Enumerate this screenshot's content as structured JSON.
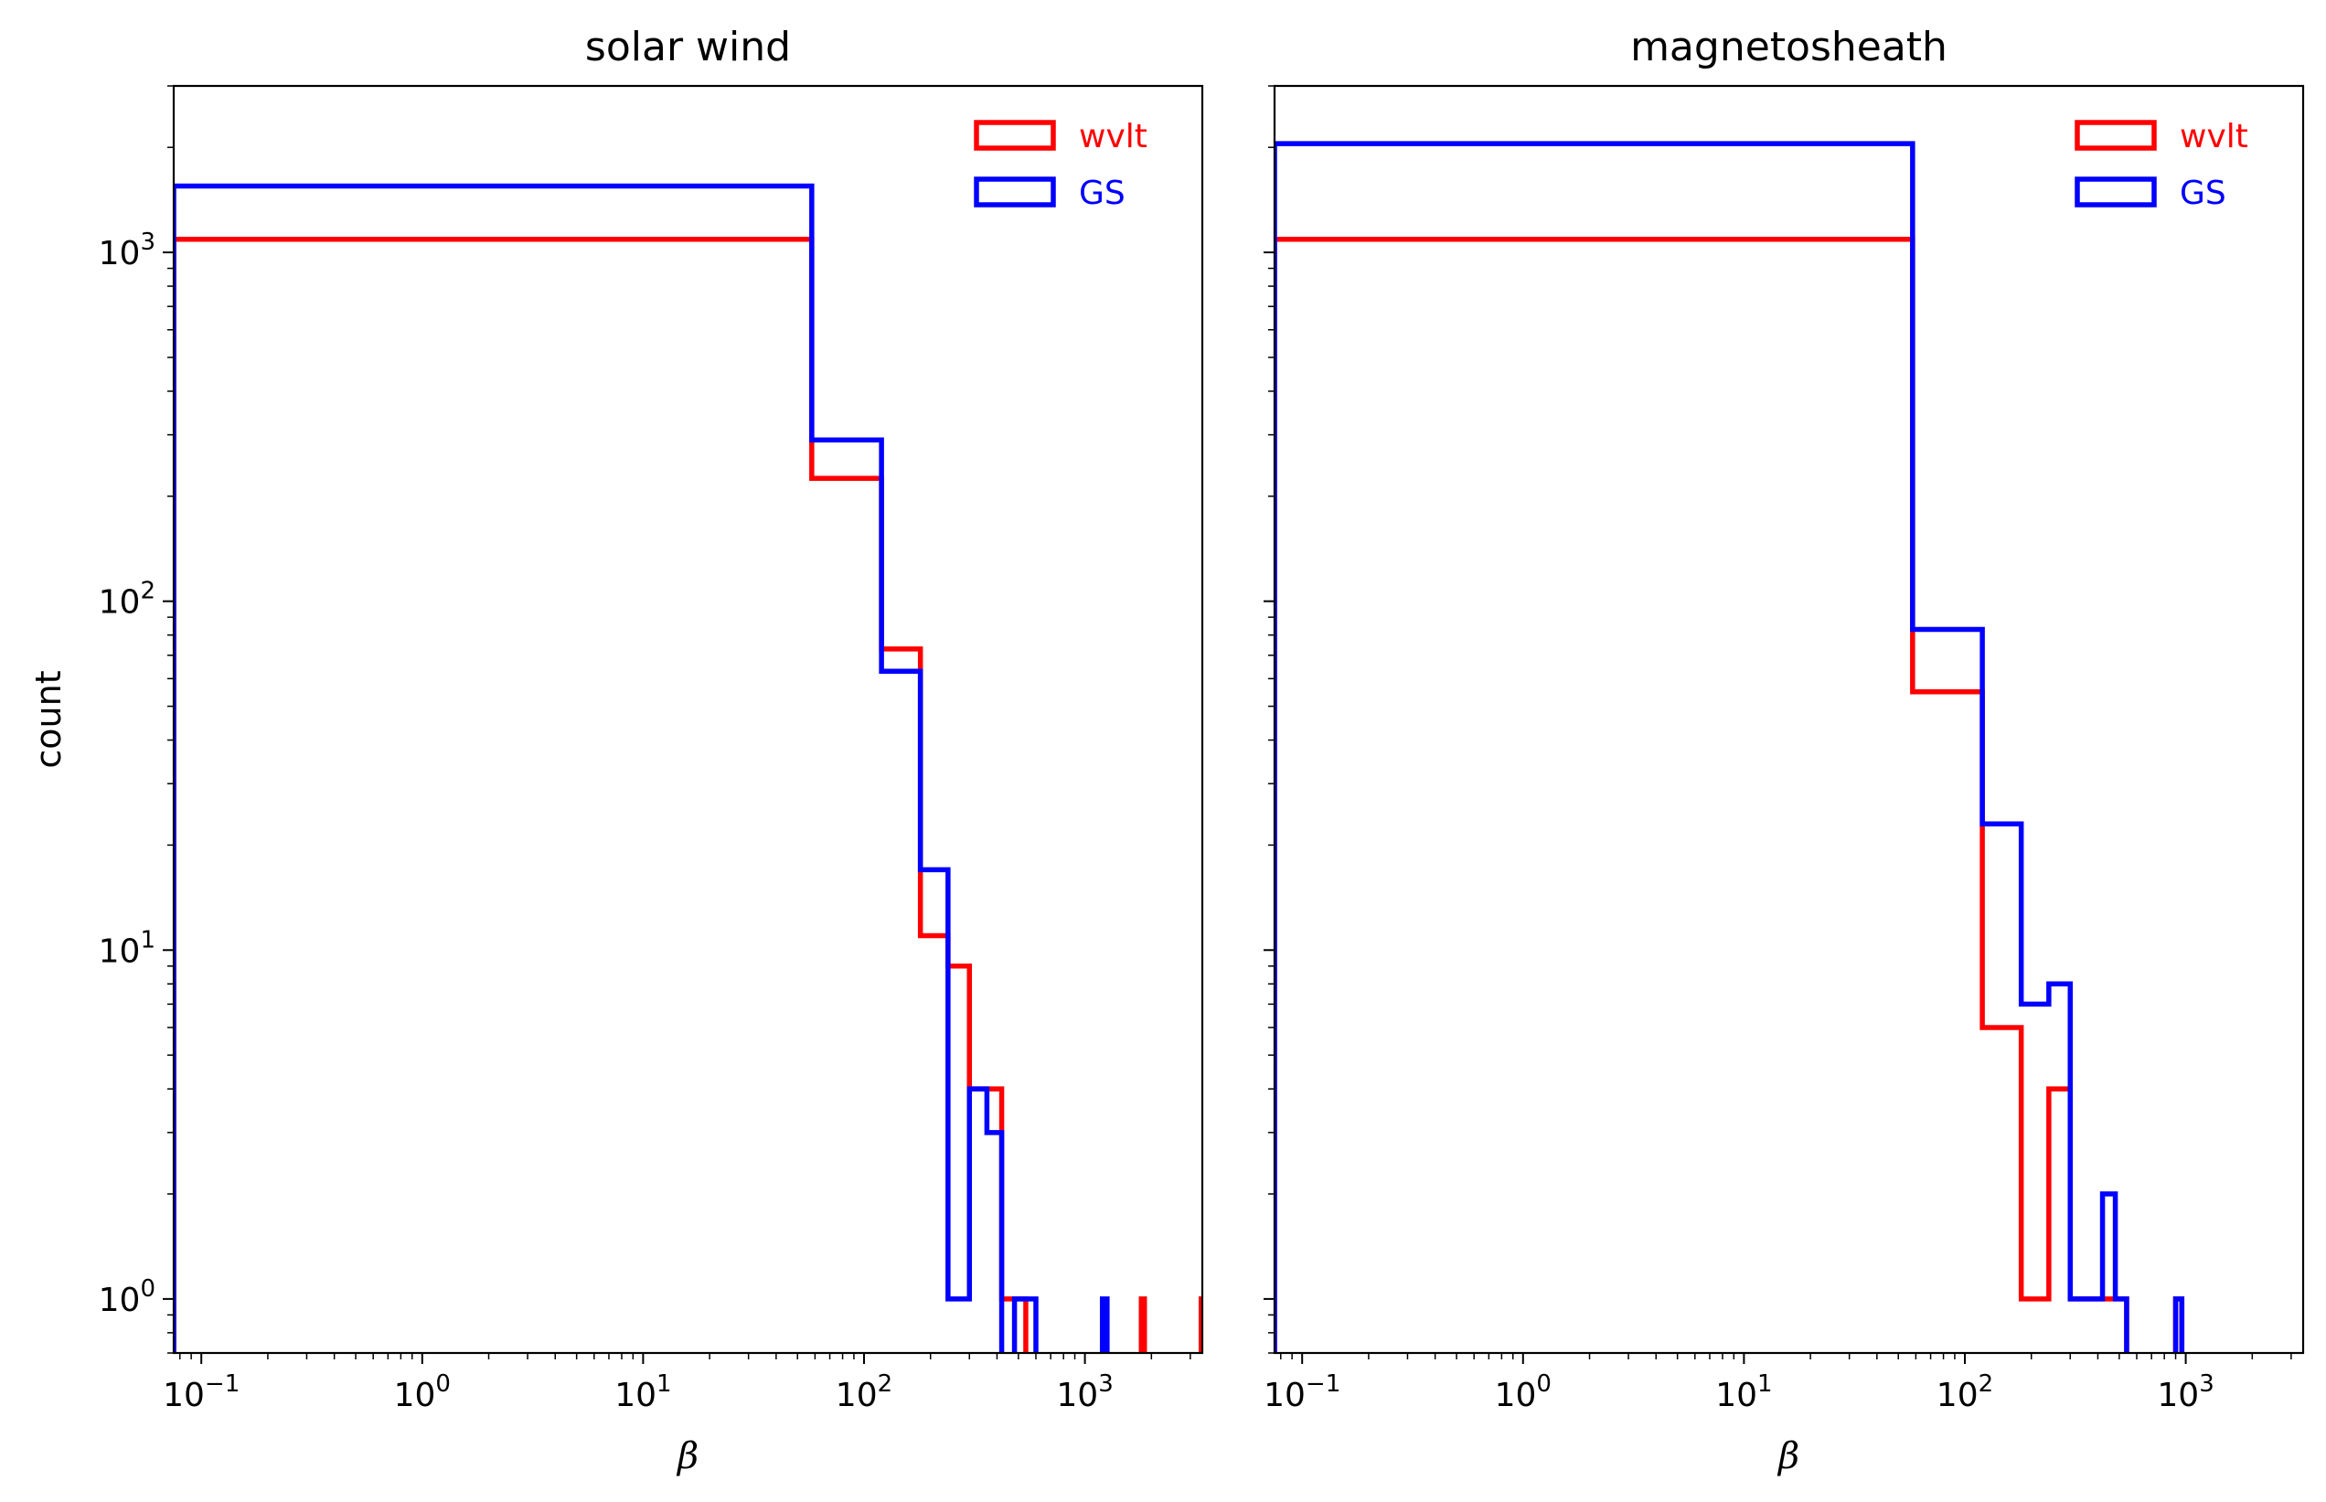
{
  "chart_data": [
    {
      "type": "histogram",
      "title": "solar wind",
      "xlabel": "β",
      "ylabel": "count",
      "xscale": "log",
      "yscale": "log",
      "xlim": [
        0.075,
        3400
      ],
      "ylim": [
        0.7,
        3000
      ],
      "x_ticks": [
        "10-1",
        "100",
        "101",
        "102",
        "103"
      ],
      "y_ticks": [
        "100",
        "101",
        "102",
        "103"
      ],
      "legend": "top-right",
      "bin_edges": [
        0.075,
        58,
        120,
        180,
        240,
        300,
        360,
        420,
        480,
        540,
        600,
        660,
        720,
        780,
        840,
        900,
        960,
        1020,
        1080,
        1140,
        1200,
        1260,
        1320,
        1380,
        1440,
        1500,
        1560,
        1620,
        1680,
        1740,
        1800,
        1860,
        1920,
        1980,
        2040,
        2100,
        2160,
        2220,
        2280,
        2340,
        2400,
        2460,
        2520,
        2580,
        2640,
        2700,
        2760,
        2820,
        2880,
        2940,
        3000,
        3060,
        3120,
        3180,
        3240,
        3300,
        3360,
        3400
      ],
      "series": [
        {
          "name": "wvlt",
          "color": "#ff0000",
          "counts": [
            1090,
            225,
            73,
            11,
            9,
            4,
            4,
            1,
            1,
            0,
            0,
            0,
            0,
            0,
            0,
            0,
            0,
            0,
            0,
            0,
            0,
            0,
            0,
            0,
            0,
            0,
            0,
            0,
            0,
            0,
            1,
            0,
            0,
            0,
            0,
            0,
            0,
            0,
            0,
            0,
            0,
            0,
            0,
            0,
            0,
            0,
            0,
            0,
            0,
            0,
            0,
            0,
            0,
            0,
            0,
            0,
            1
          ]
        },
        {
          "name": "GS",
          "color": "#0000ff",
          "counts": [
            1550,
            290,
            63,
            17,
            1,
            4,
            3,
            0,
            1,
            1,
            0,
            0,
            0,
            0,
            0,
            0,
            0,
            0,
            0,
            0,
            1,
            0,
            0,
            0,
            0,
            0,
            0,
            0,
            0,
            0,
            0,
            0,
            0,
            0,
            0,
            0,
            0,
            0,
            0,
            0,
            0,
            0,
            0,
            0,
            0,
            0,
            0,
            0,
            0,
            0,
            0,
            0,
            0,
            0,
            0,
            0,
            0
          ]
        }
      ]
    },
    {
      "type": "histogram",
      "title": "magnetosheath",
      "xlabel": "β",
      "ylabel": "",
      "xscale": "log",
      "yscale": "log",
      "xlim": [
        0.075,
        3400
      ],
      "ylim": [
        0.7,
        3000
      ],
      "x_ticks": [
        "10-1",
        "100",
        "101",
        "102",
        "103"
      ],
      "y_ticks": [],
      "legend": "top-right",
      "bin_edges": [
        0.075,
        58,
        120,
        180,
        240,
        300,
        360,
        420,
        480,
        540,
        600,
        660,
        720,
        780,
        840,
        900,
        960
      ],
      "series": [
        {
          "name": "wvlt",
          "color": "#ff0000",
          "counts": [
            1090,
            55,
            6,
            1,
            4,
            1,
            1,
            1,
            1,
            0,
            0,
            0,
            0,
            0,
            0,
            1
          ]
        },
        {
          "name": "GS",
          "color": "#0000ff",
          "counts": [
            2050,
            83,
            23,
            7,
            8,
            1,
            1,
            2,
            1,
            0,
            0,
            0,
            0,
            0,
            0,
            1
          ]
        }
      ]
    }
  ]
}
